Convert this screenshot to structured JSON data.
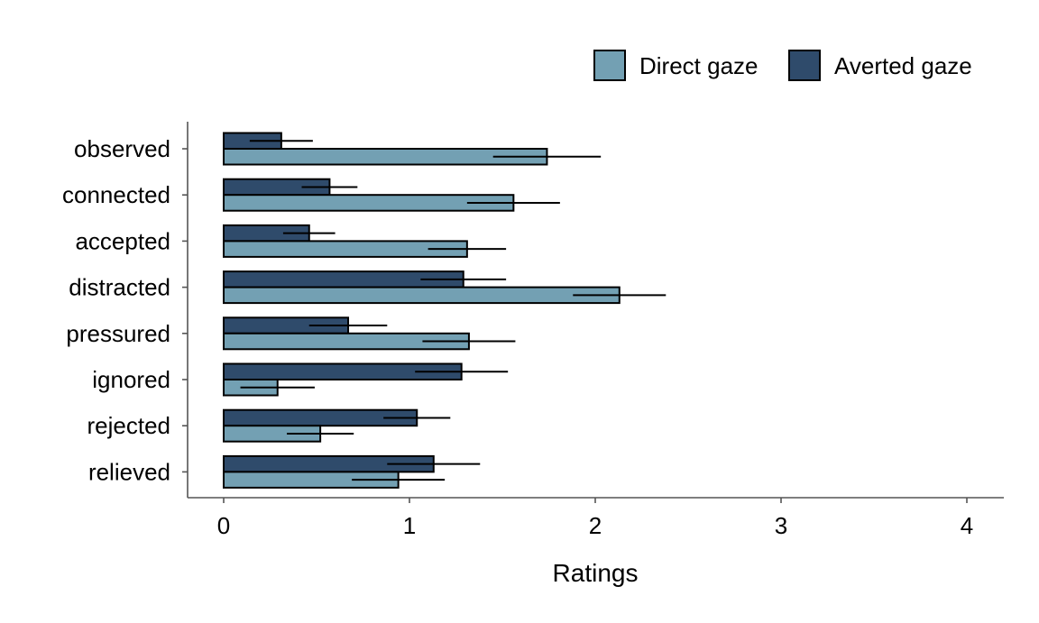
{
  "chart_data": {
    "type": "bar",
    "orientation": "horizontal",
    "xlabel": "Ratings",
    "ylabel": "",
    "xlim": [
      -0.2,
      4.2
    ],
    "x_ticks": [
      0,
      1,
      2,
      3,
      4
    ],
    "categories": [
      "observed",
      "connected",
      "accepted",
      "distracted",
      "pressured",
      "ignored",
      "rejected",
      "relieved"
    ],
    "series": [
      {
        "name": "Direct gaze",
        "color": "#73a0b3",
        "values": [
          1.74,
          1.56,
          1.31,
          2.13,
          1.32,
          0.29,
          0.52,
          0.94
        ],
        "error": [
          0.29,
          0.25,
          0.21,
          0.25,
          0.25,
          0.2,
          0.18,
          0.25
        ]
      },
      {
        "name": "Averted gaze",
        "color": "#2f4b6b",
        "values": [
          0.31,
          0.57,
          0.46,
          1.29,
          0.67,
          1.28,
          1.04,
          1.13
        ],
        "error": [
          0.17,
          0.15,
          0.14,
          0.23,
          0.21,
          0.25,
          0.18,
          0.25
        ]
      }
    ],
    "legend_position": "top-right",
    "grid": false
  }
}
